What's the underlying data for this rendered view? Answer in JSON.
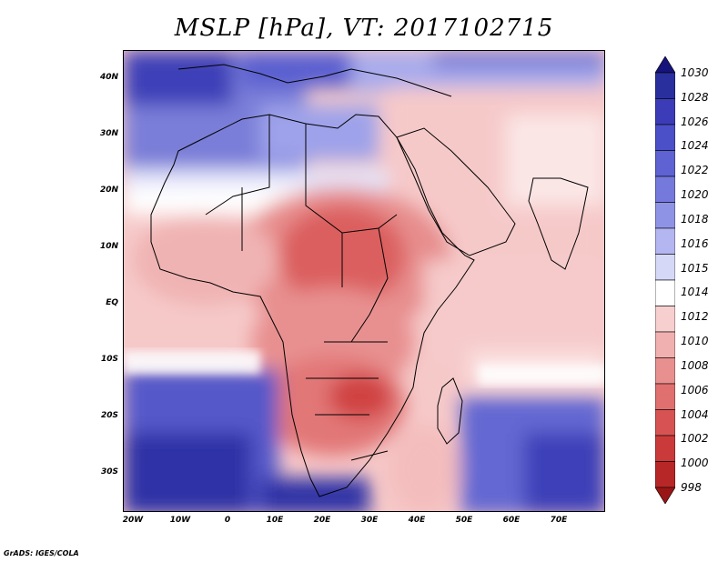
{
  "title": "MSLP [hPa], VT: 2017102715",
  "footer": "GrADS: IGES/COLA",
  "map": {
    "lat_ticks": [
      "40N",
      "30N",
      "20N",
      "10N",
      "EQ",
      "10S",
      "20S",
      "30S"
    ],
    "lon_ticks": [
      "20W",
      "10W",
      "0",
      "10E",
      "20E",
      "30E",
      "40E",
      "50E",
      "60E",
      "70E"
    ],
    "lat_range": [
      -37,
      45
    ],
    "lon_range": [
      -23,
      80
    ]
  },
  "colorbar": {
    "labels": [
      "1030",
      "1028",
      "1026",
      "1024",
      "1022",
      "1020",
      "1018",
      "1016",
      "1015",
      "1014",
      "1012",
      "1010",
      "1008",
      "1006",
      "1004",
      "1002",
      "1000",
      "998"
    ],
    "colors": [
      "#16137a",
      "#2a2f9e",
      "#3c3cb8",
      "#4b4fc8",
      "#5e62d2",
      "#7579dc",
      "#8f93e6",
      "#b3b6f0",
      "#d6d8f8",
      "#ffffff",
      "#f8cfcf",
      "#f1b0b0",
      "#e89090",
      "#e06f6f",
      "#d75353",
      "#cb3a3a",
      "#b82727",
      "#9a1515"
    ]
  }
}
